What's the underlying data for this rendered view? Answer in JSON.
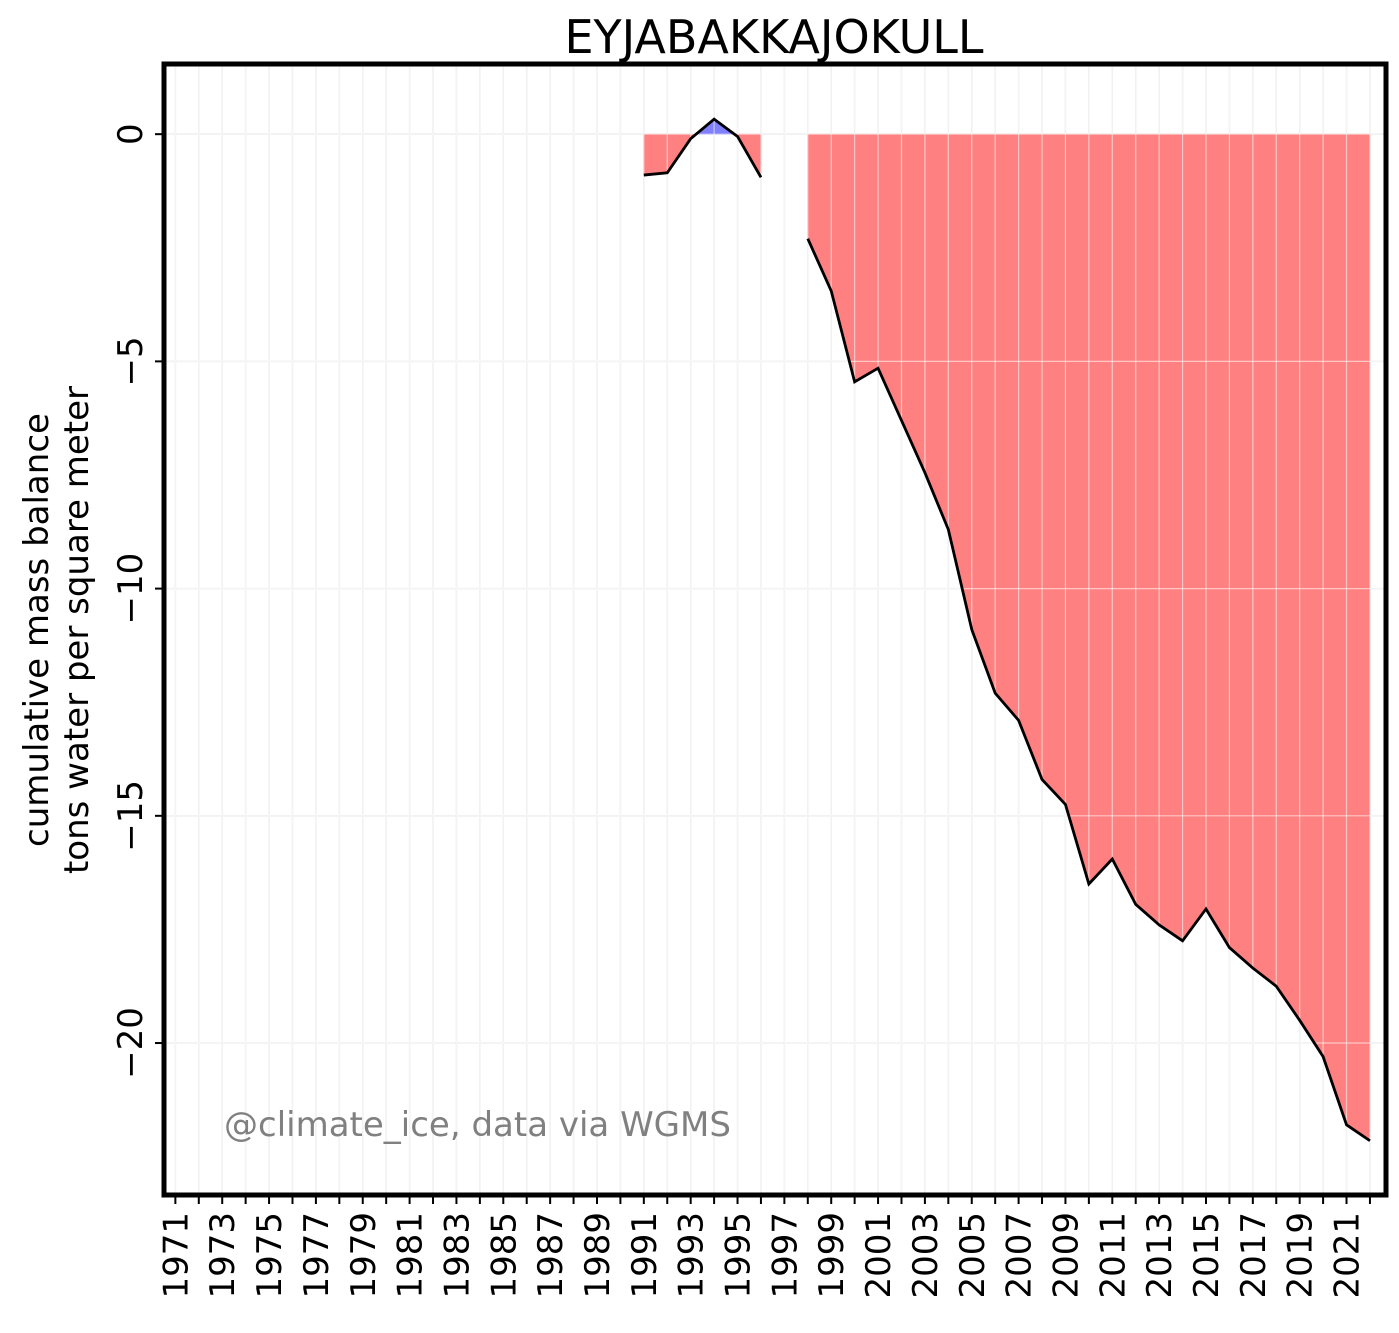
{
  "chart_data": {
    "type": "area",
    "title": "EYJABAKKAJOKULL",
    "ylabel_line1": "cumulative mass balance",
    "ylabel_line2": "tons water per square meter",
    "watermark": "@climate_ice, data via WGMS",
    "xlim": [
      1970.6,
      2022.6
    ],
    "ylim": [
      -23.3,
      1.5
    ],
    "x_ticks": [
      1971,
      1973,
      1975,
      1977,
      1979,
      1981,
      1983,
      1985,
      1987,
      1989,
      1991,
      1993,
      1995,
      1997,
      1999,
      2001,
      2003,
      2005,
      2007,
      2009,
      2011,
      2013,
      2015,
      2017,
      2019,
      2021
    ],
    "y_ticks": [
      0,
      -5,
      -10,
      -15,
      -20
    ],
    "y_tick_labels": [
      "0",
      "−5",
      "−10",
      "−15",
      "−20"
    ],
    "grid": true,
    "colors": {
      "negative_fill": "#ff8080",
      "positive_fill": "#8080ff",
      "line": "#000000",
      "grid": "#e6e6e6"
    },
    "segments": [
      {
        "x": [
          1991,
          1992,
          1993,
          1994,
          1995,
          1996
        ],
        "y": [
          -0.9,
          -0.85,
          -0.1,
          0.33,
          -0.05,
          -0.95
        ]
      },
      {
        "x": [
          1998,
          1999,
          2000,
          2001,
          2002,
          2003,
          2004,
          2005,
          2006,
          2007,
          2008,
          2009,
          2010,
          2011,
          2012,
          2013,
          2014,
          2015,
          2016,
          2017,
          2018,
          2019,
          2020,
          2021,
          2022
        ],
        "y": [
          -2.3,
          -3.45,
          -5.45,
          -5.15,
          -6.3,
          -7.45,
          -8.7,
          -10.9,
          -12.3,
          -12.9,
          -14.2,
          -14.75,
          -16.5,
          -15.95,
          -16.95,
          -17.4,
          -17.75,
          -17.05,
          -17.9,
          -18.35,
          -18.75,
          -19.5,
          -20.3,
          -21.8,
          -22.15
        ]
      }
    ]
  }
}
